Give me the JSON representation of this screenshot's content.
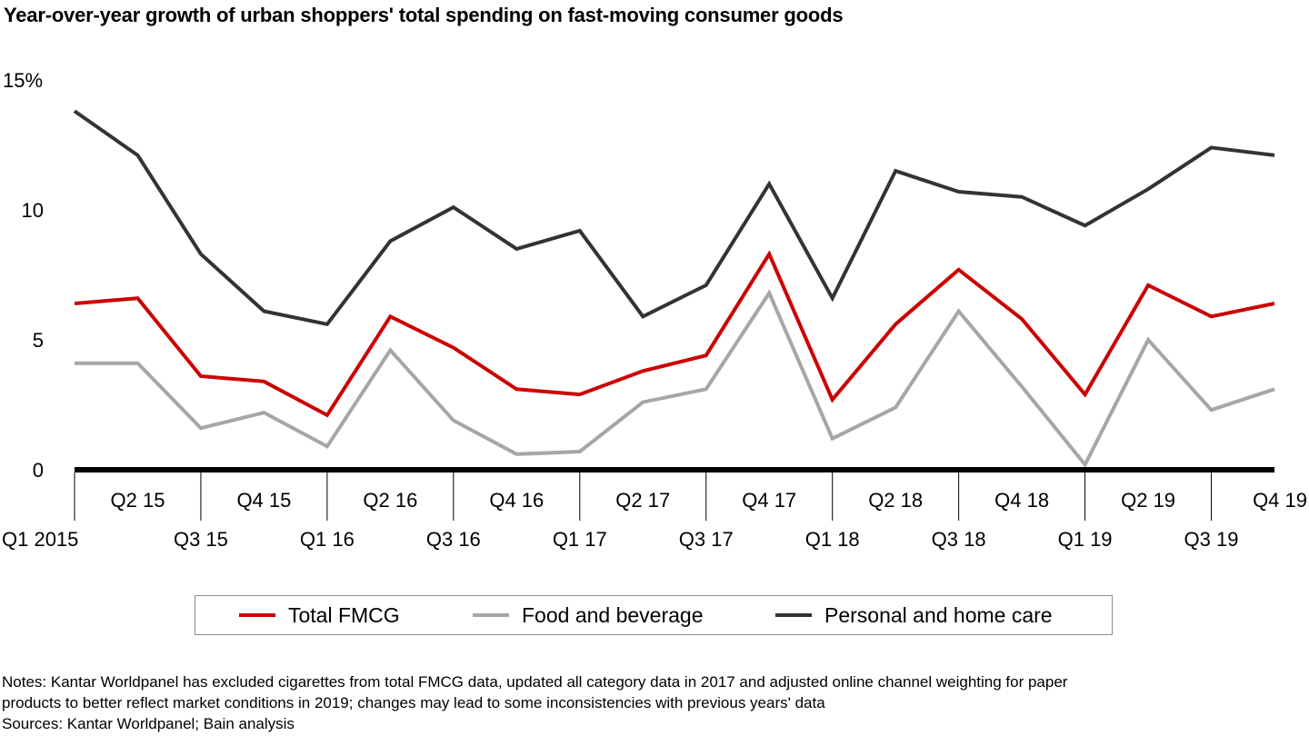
{
  "title": "Year-over-year growth of urban shoppers' total spending on fast-moving consumer goods",
  "chart_data": {
    "type": "line",
    "title": "Year-over-year growth of urban shoppers' total spending on fast-moving consumer goods",
    "xlabel": "",
    "ylabel": "",
    "ylim": [
      0,
      15
    ],
    "yticks": [
      0,
      5,
      10,
      15
    ],
    "ytick_labels": [
      "0",
      "5",
      "10",
      "15%"
    ],
    "grid": false,
    "legend_position": "bottom",
    "x": [
      "Q1 2015",
      "Q2 15",
      "Q3 15",
      "Q4 15",
      "Q1 16",
      "Q2 16",
      "Q3 16",
      "Q4 16",
      "Q1 17",
      "Q2 17",
      "Q3 17",
      "Q4 17",
      "Q1 18",
      "Q2 18",
      "Q3 18",
      "Q4 18",
      "Q1 19",
      "Q2 19",
      "Q3 19",
      "Q4 19"
    ],
    "series": [
      {
        "name": "Total FMCG",
        "color": "#cc0000",
        "values": [
          6.4,
          6.6,
          3.6,
          3.4,
          2.1,
          5.9,
          4.7,
          3.1,
          2.9,
          3.8,
          4.4,
          8.3,
          2.7,
          5.6,
          7.7,
          5.8,
          2.9,
          7.1,
          5.9,
          6.4
        ]
      },
      {
        "name": "Food and beverage",
        "color": "#a6a6a6",
        "values": [
          4.1,
          4.1,
          1.6,
          2.2,
          0.9,
          4.6,
          1.9,
          0.6,
          0.7,
          2.6,
          3.1,
          6.8,
          1.2,
          2.4,
          6.1,
          3.2,
          0.2,
          5.0,
          2.3,
          3.1
        ]
      },
      {
        "name": "Personal and home care",
        "color": "#333333",
        "values": [
          13.8,
          12.1,
          8.3,
          6.1,
          5.6,
          8.8,
          10.1,
          8.5,
          9.2,
          5.9,
          7.1,
          11.0,
          6.6,
          11.5,
          10.7,
          10.5,
          9.4,
          10.8,
          12.4,
          12.1
        ]
      }
    ]
  },
  "notes": {
    "line1": "Notes: Kantar Worldpanel has excluded cigarettes from total FMCG data, updated all category data in 2017 and adjusted online channel weighting for paper",
    "line2": "products to better reflect market conditions in 2019; changes may lead to some inconsistencies with previous years' data",
    "sources": "Sources: Kantar Worldpanel; Bain analysis"
  }
}
